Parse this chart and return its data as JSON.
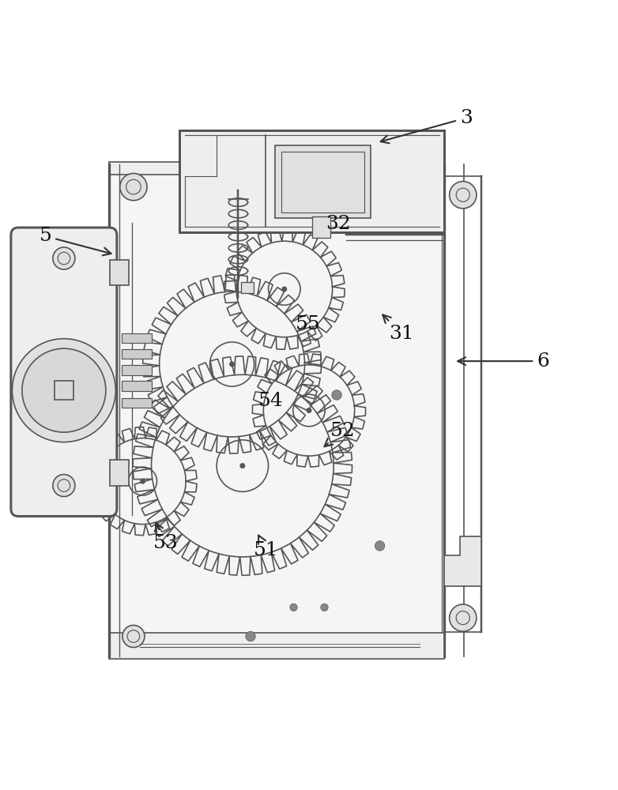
{
  "bg_color": "#ffffff",
  "line_color": "#555555",
  "line_width": 1.2,
  "label_fontsize": 18,
  "arrow_color": "#333333"
}
